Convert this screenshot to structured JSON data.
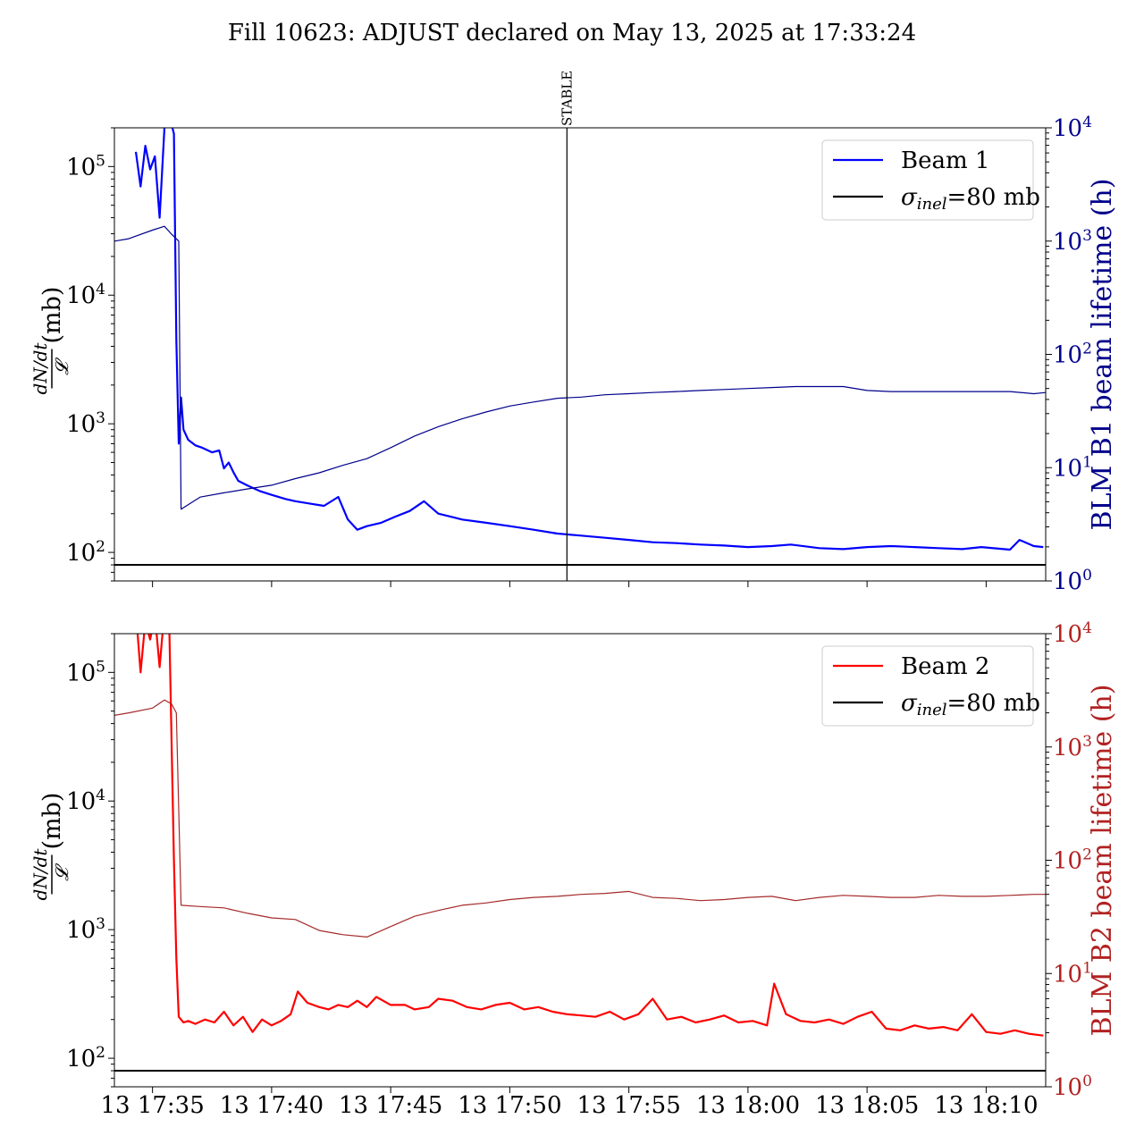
{
  "title": "Fill 10623: ADJUST declared on May 13, 2025 at 17:33:24",
  "colors": {
    "beam1": "#0000ff",
    "beam1_lifetime": "#00008b",
    "beam2": "#ff0000",
    "beam2_lifetime": "#a52a2a",
    "sigma": "#000000",
    "right_axis_1": "#00008b",
    "right_axis_2": "#b22222"
  },
  "chart_data": [
    {
      "type": "line",
      "panel": "top",
      "ylabel": "dN/dt / 𝓛 (mb)",
      "ylabel_num": "dN/dt",
      "ylabel_den": "𝓛",
      "ylabel_unit": "(mb)",
      "yscale": "log",
      "ylim": [
        60,
        200000
      ],
      "yticks": [
        {
          "value": 100,
          "label": "10²"
        },
        {
          "value": 1000,
          "label": "10³"
        },
        {
          "value": 10000,
          "label": "10⁴"
        },
        {
          "value": 100000,
          "label": "10⁵"
        }
      ],
      "y2label": "BLM B1 beam lifetime (h)",
      "y2scale": "log",
      "y2lim": [
        1,
        10000
      ],
      "y2ticks": [
        {
          "value": 1,
          "label": "10⁰"
        },
        {
          "value": 10,
          "label": "10¹"
        },
        {
          "value": 100,
          "label": "10²"
        },
        {
          "value": 1000,
          "label": "10³"
        },
        {
          "value": 10000,
          "label": "10⁴"
        }
      ],
      "xlim": [
        "2025-05-13 17:33:24",
        "2025-05-13 18:12:30"
      ],
      "xtick_values": [
        "2025-05-13 17:35",
        "2025-05-13 17:40",
        "2025-05-13 17:45",
        "2025-05-13 17:50",
        "2025-05-13 17:55",
        "2025-05-13 18:00",
        "2025-05-13 18:05",
        "2025-05-13 18:10"
      ],
      "vline": {
        "x": "2025-05-13 17:52:24",
        "label": "STABLE"
      },
      "hline": {
        "y": 80
      },
      "legend": {
        "placement": "top-right",
        "entries": [
          "Beam 1",
          "σinel=80 mb"
        ],
        "entry_main": "Beam 1",
        "sigma_sym": "σ",
        "sigma_sub": "inel",
        "sigma_rest": "=80 mb"
      },
      "series": [
        {
          "name": "Beam 1",
          "axis": "left",
          "x": [
            "2025-05-13 17:34:18",
            "2025-05-13 17:34:30",
            "2025-05-13 17:34:42",
            "2025-05-13 17:34:54",
            "2025-05-13 17:35:06",
            "2025-05-13 17:35:18",
            "2025-05-13 17:35:30",
            "2025-05-13 17:35:42",
            "2025-05-13 17:35:54",
            "2025-05-13 17:36:00",
            "2025-05-13 17:36:06",
            "2025-05-13 17:36:12",
            "2025-05-13 17:36:18",
            "2025-05-13 17:36:30",
            "2025-05-13 17:36:48",
            "2025-05-13 17:37:06",
            "2025-05-13 17:37:30",
            "2025-05-13 17:37:48",
            "2025-05-13 17:38:00",
            "2025-05-13 17:38:12",
            "2025-05-13 17:38:24",
            "2025-05-13 17:38:36",
            "2025-05-13 17:39:00",
            "2025-05-13 17:39:30",
            "2025-05-13 17:40:00",
            "2025-05-13 17:40:36",
            "2025-05-13 17:41:00",
            "2025-05-13 17:41:36",
            "2025-05-13 17:42:12",
            "2025-05-13 17:42:48",
            "2025-05-13 17:43:12",
            "2025-05-13 17:43:36",
            "2025-05-13 17:44:00",
            "2025-05-13 17:44:36",
            "2025-05-13 17:45:12",
            "2025-05-13 17:45:48",
            "2025-05-13 17:46:24",
            "2025-05-13 17:47:00",
            "2025-05-13 17:48:00",
            "2025-05-13 17:49:00",
            "2025-05-13 17:50:00",
            "2025-05-13 17:51:00",
            "2025-05-13 17:52:00",
            "2025-05-13 17:53:00",
            "2025-05-13 17:54:00",
            "2025-05-13 17:55:00",
            "2025-05-13 17:56:00",
            "2025-05-13 17:57:00",
            "2025-05-13 17:58:00",
            "2025-05-13 17:59:00",
            "2025-05-13 18:00:00",
            "2025-05-13 18:01:00",
            "2025-05-13 18:01:48",
            "2025-05-13 18:03:00",
            "2025-05-13 18:04:00",
            "2025-05-13 18:05:00",
            "2025-05-13 18:06:00",
            "2025-05-13 18:07:00",
            "2025-05-13 18:08:00",
            "2025-05-13 18:09:00",
            "2025-05-13 18:09:48",
            "2025-05-13 18:11:00",
            "2025-05-13 18:11:24",
            "2025-05-13 18:12:00",
            "2025-05-13 18:12:24"
          ],
          "values": [
            130000,
            70000,
            145000,
            95000,
            120000,
            40000,
            200000,
            250000,
            180000,
            4500,
            700,
            1600,
            900,
            750,
            680,
            650,
            600,
            620,
            450,
            500,
            420,
            360,
            330,
            300,
            280,
            260,
            250,
            240,
            230,
            270,
            180,
            150,
            160,
            170,
            190,
            210,
            250,
            200,
            180,
            170,
            160,
            150,
            140,
            135,
            130,
            125,
            120,
            118,
            115,
            113,
            110,
            112,
            115,
            108,
            106,
            110,
            112,
            110,
            108,
            106,
            110,
            105,
            125,
            112,
            110
          ]
        },
        {
          "name": "BLM B1 beam lifetime",
          "axis": "right",
          "x": [
            "2025-05-13 17:33:24",
            "2025-05-13 17:34:00",
            "2025-05-13 17:35:00",
            "2025-05-13 17:35:30",
            "2025-05-13 17:35:48",
            "2025-05-13 17:36:06",
            "2025-05-13 17:36:12",
            "2025-05-13 17:37:00",
            "2025-05-13 17:38:00",
            "2025-05-13 17:39:00",
            "2025-05-13 17:40:00",
            "2025-05-13 17:41:00",
            "2025-05-13 17:42:00",
            "2025-05-13 17:43:00",
            "2025-05-13 17:44:00",
            "2025-05-13 17:45:00",
            "2025-05-13 17:46:00",
            "2025-05-13 17:47:00",
            "2025-05-13 17:48:00",
            "2025-05-13 17:49:00",
            "2025-05-13 17:50:00",
            "2025-05-13 17:51:00",
            "2025-05-13 17:52:00",
            "2025-05-13 17:53:00",
            "2025-05-13 17:54:00",
            "2025-05-13 17:55:00",
            "2025-05-13 17:56:00",
            "2025-05-13 17:57:00",
            "2025-05-13 17:58:00",
            "2025-05-13 17:59:00",
            "2025-05-13 18:00:00",
            "2025-05-13 18:01:00",
            "2025-05-13 18:02:00",
            "2025-05-13 18:03:00",
            "2025-05-13 18:04:00",
            "2025-05-13 18:05:00",
            "2025-05-13 18:06:00",
            "2025-05-13 18:07:00",
            "2025-05-13 18:08:00",
            "2025-05-13 18:09:00",
            "2025-05-13 18:10:00",
            "2025-05-13 18:11:00",
            "2025-05-13 18:12:00",
            "2025-05-13 18:12:30"
          ],
          "values": [
            1000,
            1050,
            1250,
            1350,
            1150,
            1000,
            4.3,
            5.5,
            6,
            6.5,
            7,
            8,
            9,
            10.5,
            12,
            15,
            19,
            23,
            27,
            31,
            35,
            38,
            41,
            42,
            44,
            45,
            46,
            47,
            48,
            49,
            50,
            51,
            52,
            52,
            52,
            48,
            47,
            47,
            47,
            47,
            47,
            47,
            45,
            46
          ]
        },
        {
          "name": "σinel=80 mb",
          "axis": "left",
          "values": [
            80,
            80
          ]
        }
      ]
    },
    {
      "type": "line",
      "panel": "bottom",
      "ylabel": "dN/dt / 𝓛 (mb)",
      "ylabel_num": "dN/dt",
      "ylabel_den": "𝓛",
      "ylabel_unit": "(mb)",
      "yscale": "log",
      "ylim": [
        60,
        200000
      ],
      "yticks": [
        {
          "value": 100,
          "label": "10²"
        },
        {
          "value": 1000,
          "label": "10³"
        },
        {
          "value": 10000,
          "label": "10⁴"
        },
        {
          "value": 100000,
          "label": "10⁵"
        }
      ],
      "y2label": "BLM B2 beam lifetime (h)",
      "y2scale": "log",
      "y2lim": [
        1,
        10000
      ],
      "y2ticks": [
        {
          "value": 1,
          "label": "10⁰"
        },
        {
          "value": 10,
          "label": "10¹"
        },
        {
          "value": 100,
          "label": "10²"
        },
        {
          "value": 1000,
          "label": "10³"
        },
        {
          "value": 10000,
          "label": "10⁴"
        }
      ],
      "xlim": [
        "2025-05-13 17:33:24",
        "2025-05-13 18:12:30"
      ],
      "xticks": [
        {
          "value": "2025-05-13 17:35",
          "label": "13 17:35"
        },
        {
          "value": "2025-05-13 17:40",
          "label": "13 17:40"
        },
        {
          "value": "2025-05-13 17:45",
          "label": "13 17:45"
        },
        {
          "value": "2025-05-13 17:50",
          "label": "13 17:50"
        },
        {
          "value": "2025-05-13 17:55",
          "label": "13 17:55"
        },
        {
          "value": "2025-05-13 18:00",
          "label": "13 18:00"
        },
        {
          "value": "2025-05-13 18:05",
          "label": "13 18:05"
        },
        {
          "value": "2025-05-13 18:10",
          "label": "13 18:10"
        }
      ],
      "hline": {
        "y": 80
      },
      "legend": {
        "placement": "top-right",
        "entries": [
          "Beam 2",
          "σinel=80 mb"
        ],
        "entry_main": "Beam 2",
        "sigma_sym": "σ",
        "sigma_sub": "inel",
        "sigma_rest": "=80 mb"
      },
      "series": [
        {
          "name": "Beam 2",
          "axis": "left",
          "x": [
            "2025-05-13 17:34:18",
            "2025-05-13 17:34:30",
            "2025-05-13 17:34:42",
            "2025-05-13 17:34:54",
            "2025-05-13 17:35:06",
            "2025-05-13 17:35:18",
            "2025-05-13 17:35:30",
            "2025-05-13 17:35:42",
            "2025-05-13 17:35:54",
            "2025-05-13 17:36:00",
            "2025-05-13 17:36:06",
            "2025-05-13 17:36:18",
            "2025-05-13 17:36:30",
            "2025-05-13 17:36:48",
            "2025-05-13 17:37:12",
            "2025-05-13 17:37:36",
            "2025-05-13 17:38:00",
            "2025-05-13 17:38:24",
            "2025-05-13 17:38:48",
            "2025-05-13 17:39:12",
            "2025-05-13 17:39:36",
            "2025-05-13 17:40:00",
            "2025-05-13 17:40:24",
            "2025-05-13 17:40:48",
            "2025-05-13 17:41:06",
            "2025-05-13 17:41:30",
            "2025-05-13 17:42:00",
            "2025-05-13 17:42:24",
            "2025-05-13 17:42:48",
            "2025-05-13 17:43:12",
            "2025-05-13 17:43:36",
            "2025-05-13 17:44:00",
            "2025-05-13 17:44:24",
            "2025-05-13 17:45:00",
            "2025-05-13 17:45:36",
            "2025-05-13 17:46:00",
            "2025-05-13 17:46:36",
            "2025-05-13 17:47:00",
            "2025-05-13 17:47:36",
            "2025-05-13 17:48:12",
            "2025-05-13 17:48:48",
            "2025-05-13 17:49:24",
            "2025-05-13 17:50:00",
            "2025-05-13 17:50:36",
            "2025-05-13 17:51:12",
            "2025-05-13 17:51:48",
            "2025-05-13 17:52:24",
            "2025-05-13 17:53:00",
            "2025-05-13 17:53:36",
            "2025-05-13 17:54:12",
            "2025-05-13 17:54:48",
            "2025-05-13 17:55:24",
            "2025-05-13 17:56:00",
            "2025-05-13 17:56:36",
            "2025-05-13 17:57:12",
            "2025-05-13 17:57:48",
            "2025-05-13 17:58:24",
            "2025-05-13 17:59:00",
            "2025-05-13 17:59:36",
            "2025-05-13 18:00:12",
            "2025-05-13 18:00:48",
            "2025-05-13 18:01:06",
            "2025-05-13 18:01:36",
            "2025-05-13 18:02:12",
            "2025-05-13 18:02:48",
            "2025-05-13 18:03:24",
            "2025-05-13 18:04:00",
            "2025-05-13 18:04:36",
            "2025-05-13 18:05:12",
            "2025-05-13 18:05:48",
            "2025-05-13 18:06:24",
            "2025-05-13 18:07:00",
            "2025-05-13 18:07:36",
            "2025-05-13 18:08:12",
            "2025-05-13 18:08:48",
            "2025-05-13 18:09:24",
            "2025-05-13 18:10:00",
            "2025-05-13 18:10:36",
            "2025-05-13 18:11:12",
            "2025-05-13 18:11:48",
            "2025-05-13 18:12:24"
          ],
          "values": [
            300000,
            100000,
            250000,
            180000,
            280000,
            110000,
            300000,
            250000,
            3500,
            600,
            210,
            190,
            195,
            185,
            200,
            190,
            230,
            180,
            210,
            160,
            200,
            180,
            195,
            220,
            330,
            270,
            250,
            240,
            260,
            250,
            280,
            250,
            300,
            260,
            260,
            240,
            250,
            290,
            280,
            250,
            240,
            260,
            270,
            240,
            250,
            230,
            220,
            215,
            210,
            230,
            200,
            220,
            290,
            200,
            210,
            190,
            200,
            215,
            190,
            195,
            180,
            380,
            220,
            195,
            190,
            200,
            185,
            210,
            230,
            170,
            165,
            180,
            170,
            175,
            165,
            220,
            160,
            155,
            165,
            155,
            150
          ]
        },
        {
          "name": "BLM B2 beam lifetime",
          "axis": "right",
          "x": [
            "2025-05-13 17:33:24",
            "2025-05-13 17:34:00",
            "2025-05-13 17:35:00",
            "2025-05-13 17:35:30",
            "2025-05-13 17:35:48",
            "2025-05-13 17:36:00",
            "2025-05-13 17:36:12",
            "2025-05-13 17:37:00",
            "2025-05-13 17:38:00",
            "2025-05-13 17:39:00",
            "2025-05-13 17:40:00",
            "2025-05-13 17:41:00",
            "2025-05-13 17:42:00",
            "2025-05-13 17:43:00",
            "2025-05-13 17:44:00",
            "2025-05-13 17:45:00",
            "2025-05-13 17:46:00",
            "2025-05-13 17:47:00",
            "2025-05-13 17:48:00",
            "2025-05-13 17:49:00",
            "2025-05-13 17:50:00",
            "2025-05-13 17:51:00",
            "2025-05-13 17:52:00",
            "2025-05-13 17:53:00",
            "2025-05-13 17:54:00",
            "2025-05-13 17:55:00",
            "2025-05-13 17:56:00",
            "2025-05-13 17:57:00",
            "2025-05-13 17:58:00",
            "2025-05-13 17:59:00",
            "2025-05-13 18:00:00",
            "2025-05-13 18:01:00",
            "2025-05-13 18:02:00",
            "2025-05-13 18:03:00",
            "2025-05-13 18:04:00",
            "2025-05-13 18:05:00",
            "2025-05-13 18:06:00",
            "2025-05-13 18:07:00",
            "2025-05-13 18:08:00",
            "2025-05-13 18:09:00",
            "2025-05-13 18:10:00",
            "2025-05-13 18:11:00",
            "2025-05-13 18:12:00",
            "2025-05-13 18:12:30"
          ],
          "values": [
            1900,
            2000,
            2200,
            2600,
            2400,
            2000,
            40,
            39,
            38,
            34,
            31,
            30,
            24,
            22,
            21,
            26,
            32,
            36,
            40,
            42,
            45,
            47,
            48,
            50,
            51,
            53,
            47,
            46,
            44,
            45,
            47,
            48,
            44,
            47,
            49,
            48,
            47,
            47,
            49,
            48,
            48,
            49,
            50,
            50
          ]
        },
        {
          "name": "σinel=80 mb",
          "axis": "left",
          "values": [
            80,
            80
          ]
        }
      ]
    }
  ]
}
